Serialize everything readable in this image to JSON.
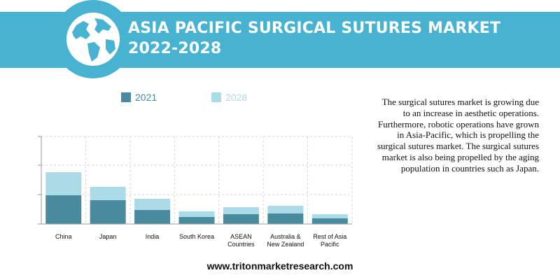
{
  "header": {
    "title_line1": "ASIA PACIFIC SURGICAL SUTURES MARKET",
    "title_line2": "2022-2028",
    "icon": "globe-icon"
  },
  "description": "The surgical sutures market is growing due to an increase in aesthetic operations. Furthermore, robotic operations have grown in Asia-Pacific, which is propelling the surgical sutures market. The surgical sutures market is also being propelled by the aging population in countries such as Japan.",
  "footer": {
    "url": "www.tritonmarketresearch.com"
  },
  "colors": {
    "banner": "#47b3d1",
    "series_2021": "#4a8a9e",
    "series_2028": "#acdbe8"
  },
  "chart_data": {
    "type": "bar",
    "stacked": true,
    "categories": [
      "China",
      "Japan",
      "India",
      "South Korea",
      "ASEAN Countries",
      "Australia & New Zealand",
      "Rest of Asia Pacific"
    ],
    "category_lines": [
      [
        "China"
      ],
      [
        "Japan"
      ],
      [
        "India"
      ],
      [
        "South Korea"
      ],
      [
        "ASEAN",
        "Countries"
      ],
      [
        "Australia &",
        "New Zealand"
      ],
      [
        "Rest of Asia",
        "Pacific"
      ]
    ],
    "series": [
      {
        "name": "2021",
        "color": "#4a8a9e",
        "values": [
          41,
          34,
          20,
          10,
          14,
          15,
          8
        ]
      },
      {
        "name": "2028",
        "color": "#acdbe8",
        "values": [
          74,
          53,
          36,
          18,
          24,
          26,
          14
        ]
      }
    ],
    "ylim": [
      0,
      125
    ],
    "yticks": [
      0,
      42,
      84,
      125
    ],
    "show_y_tick_labels": false,
    "grid": true,
    "legend_position": "top",
    "xlabel": "",
    "ylabel": ""
  }
}
